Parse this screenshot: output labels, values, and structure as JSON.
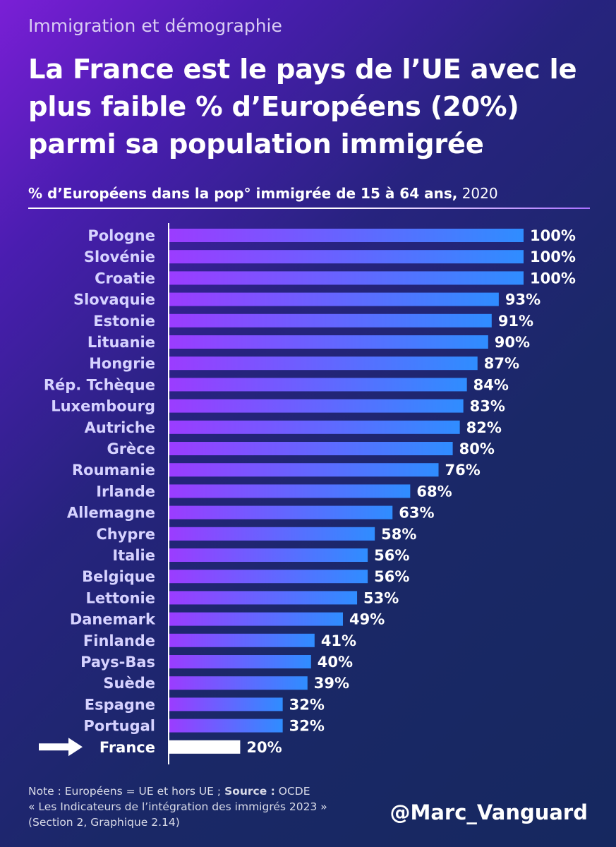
{
  "kicker": "Immigration et démographie",
  "title": "La France est le pays de l’UE avec le plus faible % d’Européens (20%) parmi sa population immigrée",
  "subtitle_bold": "% d’Européens dans la pop° immigrée de 15 à 64 ans,",
  "subtitle_year": " 2020",
  "chart_data": {
    "type": "bar",
    "orientation": "horizontal",
    "title": "% d’Européens dans la pop° immigrée de 15 à 64 ans, 2020",
    "categories": [
      "Pologne",
      "Slovénie",
      "Croatie",
      "Slovaquie",
      "Estonie",
      "Lituanie",
      "Hongrie",
      "Rép. Tchèque",
      "Luxembourg",
      "Autriche",
      "Grèce",
      "Roumanie",
      "Irlande",
      "Allemagne",
      "Chypre",
      "Italie",
      "Belgique",
      "Lettonie",
      "Danemark",
      "Finlande",
      "Pays-Bas",
      "Suède",
      "Espagne",
      "Portugal",
      "France"
    ],
    "values": [
      100,
      100,
      100,
      93,
      91,
      90,
      87,
      84,
      83,
      82,
      80,
      76,
      68,
      63,
      58,
      56,
      56,
      53,
      49,
      41,
      40,
      39,
      32,
      32,
      20
    ],
    "value_labels": [
      "100%",
      "100%",
      "100%",
      "93%",
      "91%",
      "90%",
      "87%",
      "84%",
      "83%",
      "82%",
      "80%",
      "76%",
      "68%",
      "63%",
      "58%",
      "56%",
      "56%",
      "53%",
      "49%",
      "41%",
      "40%",
      "39%",
      "32%",
      "32%",
      "20%"
    ],
    "unit": "%",
    "xlim": [
      0,
      100
    ],
    "highlight": "France",
    "colors": {
      "bar_start": "#9b3cff",
      "bar_end": "#2f8dff",
      "highlight": "#ffffff",
      "label": "#d6d2ff"
    }
  },
  "note": {
    "prefix": "Note : Européens = UE et hors UE ; ",
    "source_label": "Source :",
    "source_org": " OCDE",
    "line2": "« Les Indicateurs de l’intégration des immigrés 2023 »",
    "line3": "(Section 2, Graphique 2.14)"
  },
  "handle": "@Marc_Vanguard"
}
